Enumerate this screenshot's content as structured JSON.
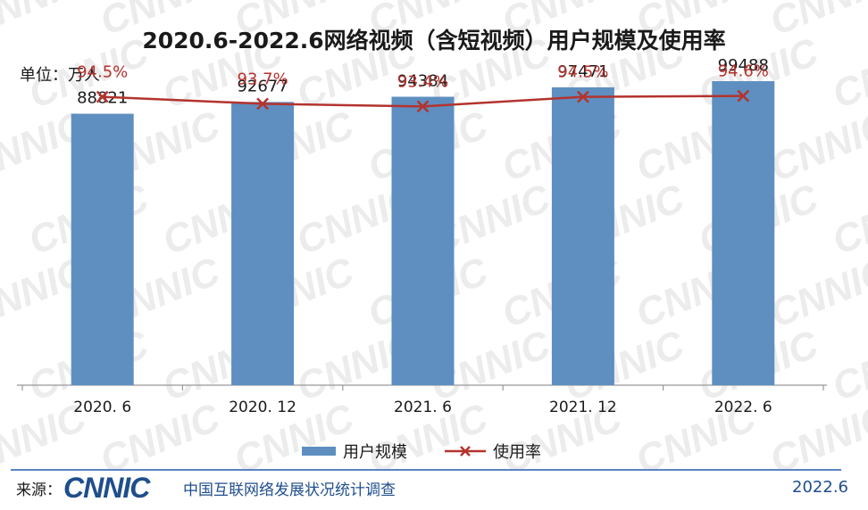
{
  "header": {
    "title": "2020.6-2022.6网络视频（含短视频）用户规模及使用率",
    "unit": "单位：万人"
  },
  "legend": {
    "bar_label": "用户规模",
    "line_label": "使用率"
  },
  "footer": {
    "source_label": "来源：",
    "logo_text": "CNNIC",
    "org_name": "中国互联网络发展状况统计调查",
    "date": "2022.6"
  },
  "watermark_text": "CNNIC",
  "colors": {
    "bar": "#5e8fc0",
    "line": "#b4332e",
    "label_line": "#b4332e",
    "axis": "#999999",
    "watermark": "#ececec",
    "brand": "#1f4e8c"
  },
  "chart_data": {
    "type": "bar",
    "title": "2020.6-2022.6网络视频（含短视频）用户规模及使用率",
    "ylabel": "单位：万人",
    "categories": [
      "2020. 6",
      "2020. 12",
      "2021. 6",
      "2021. 12",
      "2022. 6"
    ],
    "series": [
      {
        "name": "用户规模",
        "type": "bar",
        "values": [
          88821,
          92677,
          94384,
          97471,
          99488
        ],
        "labels": [
          "88821",
          "92677",
          "94384",
          "97471",
          "99488"
        ]
      },
      {
        "name": "使用率",
        "type": "line",
        "values": [
          94.5,
          93.7,
          93.4,
          94.5,
          94.6
        ],
        "labels": [
          "94.5%",
          "93.7%",
          "93.4%",
          "94.5%",
          "94.6%"
        ]
      }
    ],
    "legend_position": "bottom",
    "grid": false
  }
}
